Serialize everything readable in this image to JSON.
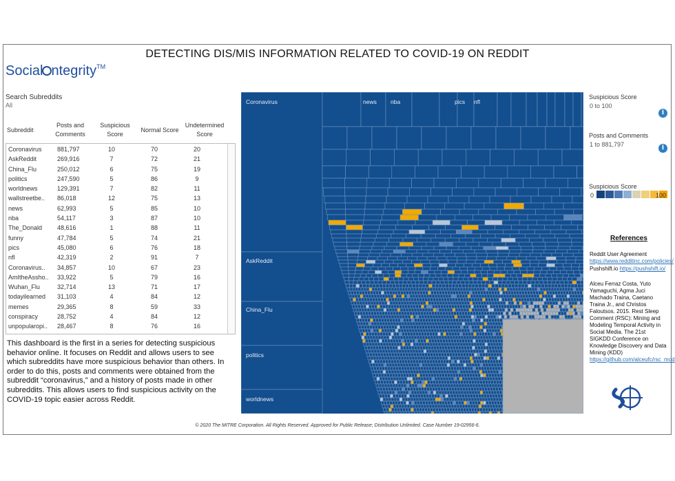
{
  "page": {
    "title": "DETECTING DIS/MIS INFORMATION RELATED TO COVID-19 ON REDDIT",
    "logo_text_a": "Social",
    "logo_text_b": "ntegrity",
    "logo_tm": "TM",
    "footer": "© 2020 The MITRE Corporation. All Rights Reserved. Approved for Public Release; Distribution Unlimited. Case Number 19-02956-6."
  },
  "search": {
    "label": "Search Subreddits",
    "value": "All"
  },
  "table": {
    "headers": [
      "Subreddit",
      "Posts and Comments",
      "Suspicious Score",
      "Normal Score",
      "Undetermined Score"
    ],
    "rows": [
      [
        "Coronavirus",
        "881,797",
        "10",
        "70",
        "20"
      ],
      [
        "AskReddit",
        "269,916",
        "7",
        "72",
        "21"
      ],
      [
        "China_Flu",
        "250,012",
        "6",
        "75",
        "19"
      ],
      [
        "politics",
        "247,590",
        "5",
        "86",
        "9"
      ],
      [
        "worldnews",
        "129,391",
        "7",
        "82",
        "11"
      ],
      [
        "wallstreetbe..",
        "86,018",
        "12",
        "75",
        "13"
      ],
      [
        "news",
        "62,993",
        "5",
        "85",
        "10"
      ],
      [
        "nba",
        "54,117",
        "3",
        "87",
        "10"
      ],
      [
        "The_Donald",
        "48,616",
        "1",
        "88",
        "11"
      ],
      [
        "funny",
        "47,784",
        "5",
        "74",
        "21"
      ],
      [
        "pics",
        "45,080",
        "6",
        "76",
        "18"
      ],
      [
        "nfl",
        "42,319",
        "2",
        "91",
        "7"
      ],
      [
        "Coronavirus..",
        "34,857",
        "10",
        "67",
        "23"
      ],
      [
        "AmItheAssho..",
        "33,922",
        "5",
        "79",
        "16"
      ],
      [
        "Wuhan_Flu",
        "32,714",
        "13",
        "71",
        "17"
      ],
      [
        "todayilearned",
        "31,103",
        "4",
        "84",
        "12"
      ],
      [
        "memes",
        "29,365",
        "8",
        "59",
        "33"
      ],
      [
        "conspiracy",
        "28,752",
        "4",
        "84",
        "12"
      ],
      [
        "unpopularopi..",
        "28,467",
        "8",
        "76",
        "16"
      ]
    ]
  },
  "description": "This dashboard is the first in a series for detecting suspicious behavior online. It focuses on Reddit and allows users to see which subreddits have more suspicious behavior than others. In order to do this, posts and comments were obtained from the subreddit “coronavirus,” and a history of posts made in other subreddits. This allows users to find suspicious activity on the COVID-19 topic easier across Reddit.",
  "treemap": {
    "labels": [
      "Coronavirus",
      "news",
      "nba",
      "pics",
      "nfl",
      "AskReddit",
      "China_Flu",
      "politics",
      "worldnews"
    ],
    "colors": {
      "base": "#134e8e",
      "grid": "#6f95c2",
      "highlight": "#f2a900",
      "light": "#b9c7d8",
      "mid": "#5a86bb",
      "grey": "#b3b3b3"
    }
  },
  "filters": {
    "suspicious_label": "Suspicious Score",
    "suspicious_value": "0 to 100",
    "posts_label": "Posts and Comments",
    "posts_value": "1 to 881,797",
    "legend_label": "Suspicious Score",
    "legend_min": "0",
    "legend_max": "100",
    "legend_colors": [
      "#14427d",
      "#2a5a98",
      "#4f7bb5",
      "#8eaed3",
      "#d9d2b5",
      "#f0cf7a",
      "#f5b93a",
      "#f2a300"
    ],
    "info_glyph": "i"
  },
  "references": {
    "title": "References",
    "ref1_text": "Reddit User Agreement ",
    "ref1_link": "https://www.redditinc.com/policies/",
    "ref2_text": "Pushshift.io ",
    "ref2_link": "https://pushshift.io/",
    "ref3_text": "Alceu Ferraz Costa, Yuto Yamaguchi, Agma Juci Machado Traina, Caetano Traina Jr., and Christos Faloutsos. 2015. Rest Sleep Comment (RSC): Mining and Modeling Temporal Activity in Social Media. The 21st SIGKDD Conference on Knowledge Discovery and Data Mining (KDD) ",
    "ref3_link": "https://github.com/alceufc/rsc_model"
  }
}
